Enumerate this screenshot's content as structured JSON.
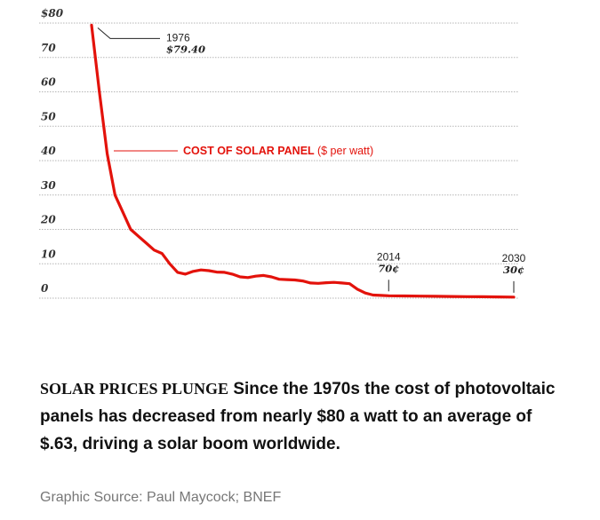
{
  "chart_data": {
    "type": "line",
    "yticks": [
      "$80",
      "70",
      "60",
      "50",
      "40",
      "30",
      "20",
      "10",
      "0"
    ],
    "ylim": [
      0,
      80
    ],
    "xlim": [
      1976,
      2030
    ],
    "grid": true,
    "series": [
      {
        "name": "COST OF SOLAR PANEL",
        "unit": "($ per watt)",
        "color": "#e3120b",
        "x": [
          1976,
          1977,
          1978,
          1979,
          1980,
          1981,
          1982,
          1983,
          1984,
          1985,
          1986,
          1987,
          1988,
          1989,
          1990,
          1991,
          1992,
          1993,
          1994,
          1995,
          1996,
          1997,
          1998,
          1999,
          2000,
          2001,
          2002,
          2003,
          2004,
          2005,
          2006,
          2007,
          2008,
          2009,
          2010,
          2011,
          2012,
          2013,
          2014,
          2016,
          2018,
          2020,
          2022,
          2024,
          2026,
          2028,
          2030
        ],
        "y": [
          79.4,
          60.0,
          42.0,
          30.0,
          25.0,
          20.0,
          18.0,
          16.0,
          14.0,
          13.0,
          10.0,
          7.5,
          7.0,
          7.8,
          8.2,
          8.0,
          7.6,
          7.5,
          7.0,
          6.2,
          6.0,
          6.4,
          6.6,
          6.2,
          5.5,
          5.4,
          5.3,
          5.0,
          4.4,
          4.3,
          4.5,
          4.6,
          4.4,
          4.2,
          2.6,
          1.5,
          0.9,
          0.8,
          0.7,
          0.65,
          0.6,
          0.55,
          0.5,
          0.45,
          0.4,
          0.35,
          0.3
        ]
      }
    ],
    "annotations": [
      {
        "year_label": "1976",
        "value_label": "$79.40",
        "x": 1976,
        "y": 79.4
      },
      {
        "year_label": "2014",
        "value_label": "70¢",
        "x": 2014,
        "y": 0.7
      },
      {
        "year_label": "2030",
        "value_label": "30¢",
        "x": 2030,
        "y": 0.3
      }
    ]
  },
  "caption": {
    "headline": "SOLAR PRICES PLUNGE",
    "text": " Since the 1970s the cost of photovoltaic panels has decreased from nearly $80 a watt to an average of $.63, driving a solar boom worldwide."
  },
  "source": "Graphic Source: Paul Maycock; BNEF"
}
